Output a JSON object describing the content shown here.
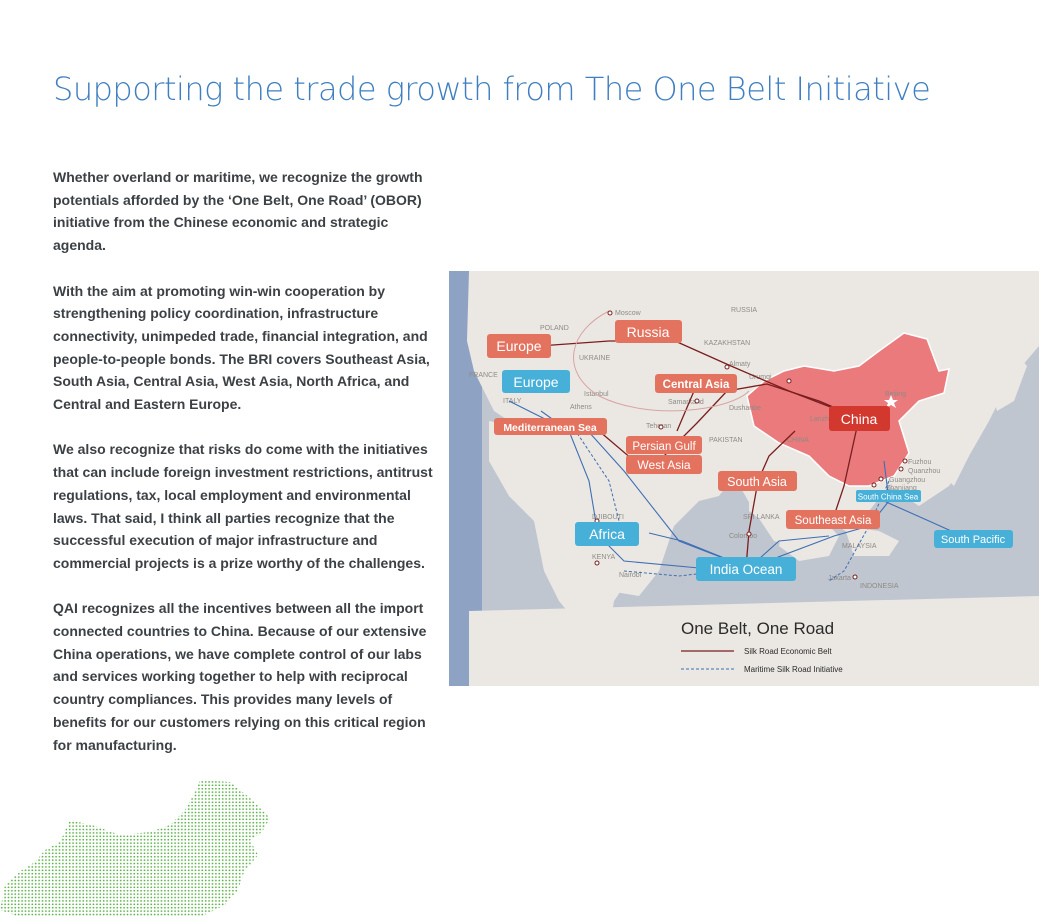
{
  "title": "Supporting the trade growth from The One Belt Initiative",
  "paragraphs": [
    "Whether overland or maritime, we recognize the growth potentials afforded by the ‘One Belt, One Road’ (OBOR) initiative from the Chinese economic and strategic agenda.",
    "With the aim at promoting win-win cooperation by strengthening policy coordination, infrastructure connectivity, unimpeded trade, financial integration, and people-to-people bonds. The BRI covers Southeast Asia, South Asia, Central Asia, West Asia, North Africa, and Central and Eastern Europe.",
    "We also recognize that risks do come with the initiatives that can include foreign investment restrictions, antitrust regulations, tax, local employment and environmental laws. That said, I think all parties recognize that the successful execution of major infrastructure and commercial projects is a prize worthy of the challenges.",
    "QAI recognizes all the incentives between all the import connected countries to China. Because of our extensive China operations, we have complete control of our labs and services working together to help with reciprocal country compliances. This provides many levels of benefits for our customers relying on this critical region for manufacturing."
  ],
  "map": {
    "legend_title": "One Belt, One Road",
    "legend_land": "Silk Road Economic Belt",
    "legend_sea": "Maritime Silk Road Initiative",
    "land_labels": {
      "europe": "Europe",
      "russia": "Russia",
      "central_asia": "Central Asia",
      "china": "China",
      "mediterranean": "Mediterranean Sea",
      "persian_gulf": "Persian Gulf",
      "west_asia": "West Asia",
      "south_asia": "South Asia",
      "southeast_asia": "Southeast Asia"
    },
    "sea_labels": {
      "europe": "Europe",
      "africa": "Africa",
      "india_ocean": "India Ocean",
      "south_china_sea": "South China Sea",
      "south_pacific": "South Pacific"
    },
    "places": {
      "moscow": "Moscow",
      "russia": "RUSSIA",
      "poland": "POLAND",
      "ukraine": "UKRAINE",
      "kazakhstan": "KAZAKHSTAN",
      "almaty": "Almaty",
      "urumqi": "Urumqi",
      "istanbul": "Istanbul",
      "samarkand": "Samarkand",
      "dushanbe": "Dushanbe",
      "italy": "ITALY",
      "france": "FRANCE",
      "athens": "Athens",
      "teheran": "Teheran",
      "pakistan": "PAKISTAN",
      "china": "CHINA",
      "djibouti": "DJIBOUTI",
      "kenya": "KENYA",
      "nairobi": "Nairobi",
      "sri_lanka": "SRI LANKA",
      "colombo": "Colombo",
      "malaysia": "MALAYSIA",
      "jakarta": "Jakarta",
      "indonesia": "INDONESIA",
      "fuzhou": "Fuzhou",
      "quanzhou": "Quanzhou",
      "guangzhou": "Guangzhou",
      "zhanjiang": "Zhanjiang",
      "beijing": "Beijing",
      "lanzhou": "Lanzhou"
    }
  },
  "colors": {
    "title": "#3f7fc1",
    "body": "#3c4146",
    "land_label": "#e3735f",
    "china_label": "#d2382e",
    "sea_label": "#47b0d8",
    "china_fill": "#ea7a7c",
    "land_route": "#7a1e1e",
    "sea_route": "#3e6fb4",
    "dots": "#5cb34a"
  }
}
